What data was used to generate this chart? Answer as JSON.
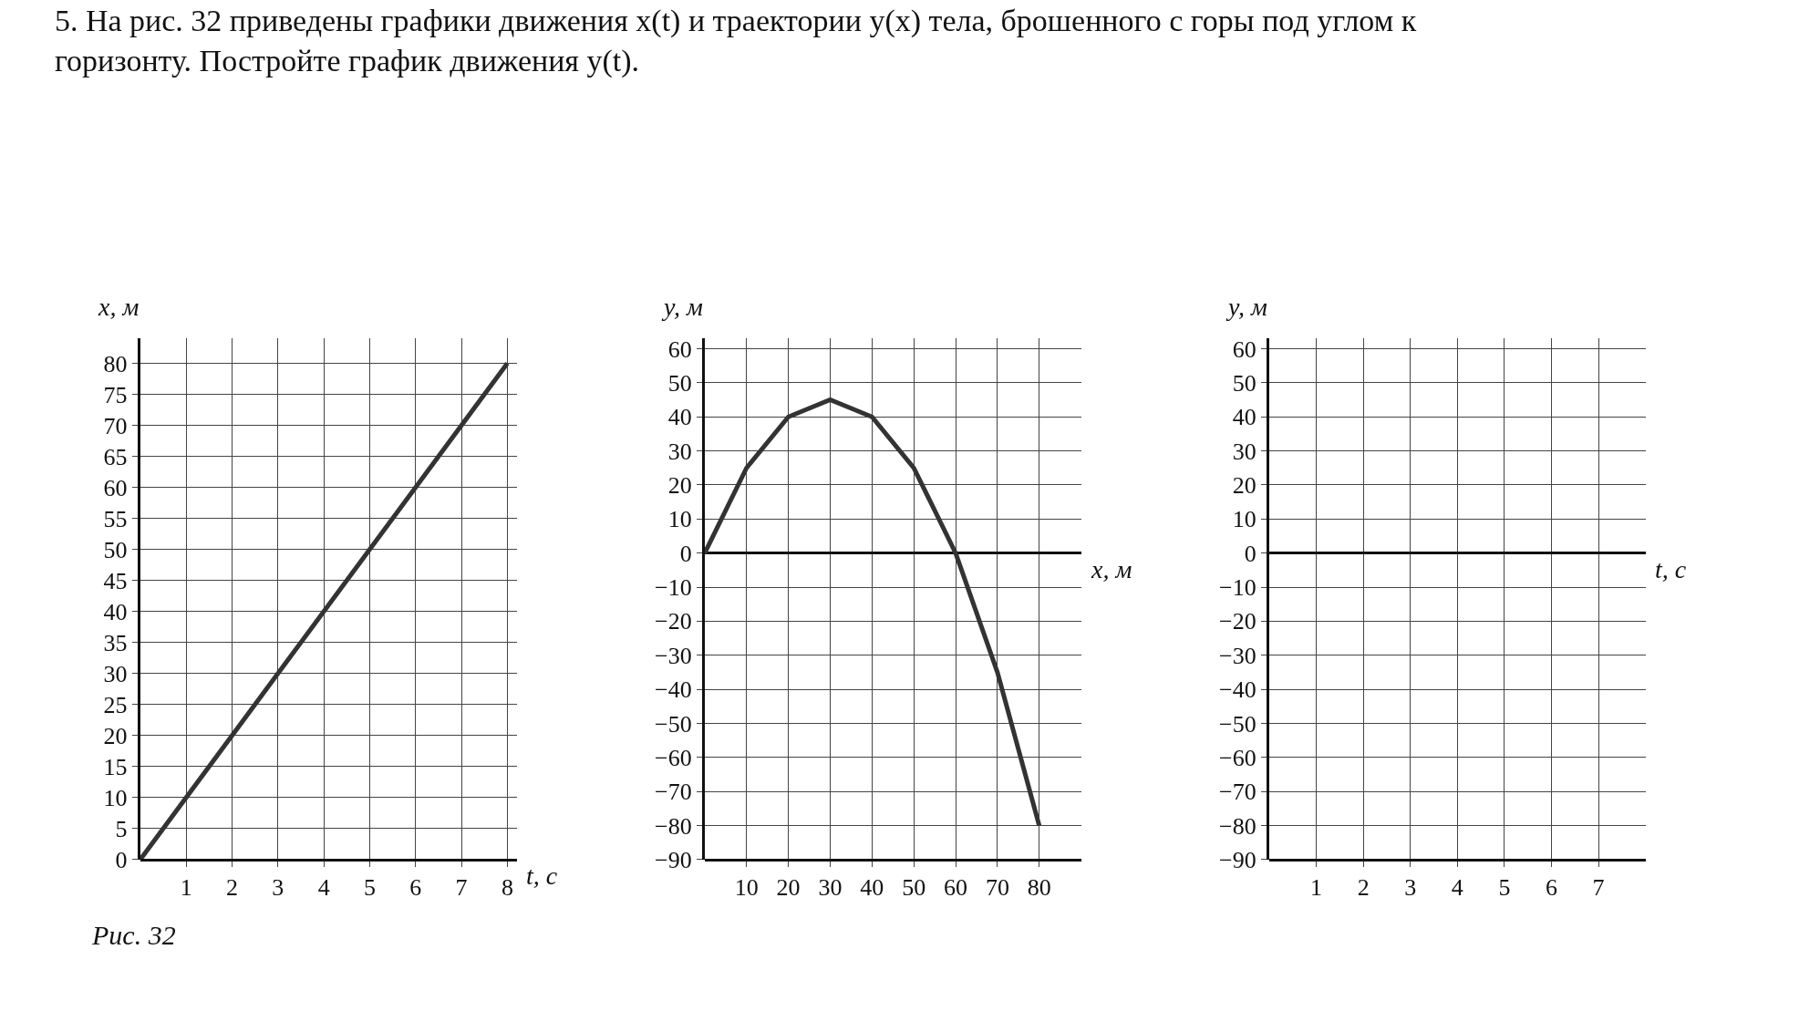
{
  "chart_data": [
    {
      "type": "line",
      "title": "5. На рис. 32 приведены графики движения x(t) и траектории y(x) тела, брошенного с горы под углом к горизонту. Постройте график движения y(t).",
      "annotations": [
        "Рис. 32"
      ],
      "xlabel": "t, с",
      "ylabel": "x, м",
      "x": [
        0,
        8
      ],
      "series": [
        {
          "color": "#333333",
          "values": [
            0,
            80
          ]
        }
      ],
      "xlim": [
        0,
        8.2
      ],
      "ylim": [
        0,
        84
      ],
      "xticks": [
        1,
        2,
        3,
        4,
        5,
        6,
        7,
        8
      ],
      "yticks": [
        0,
        5,
        10,
        15,
        20,
        25,
        30,
        35,
        40,
        45,
        50,
        55,
        60,
        65,
        70,
        75,
        80
      ],
      "grid": true,
      "marker": "none"
    },
    {
      "type": "line",
      "xlabel": "x, м",
      "ylabel": "y, м",
      "x": [
        0,
        10,
        20,
        30,
        40,
        50,
        60,
        70,
        80
      ],
      "series": [
        {
          "color": "#333333",
          "values": [
            0,
            25,
            40,
            45,
            40,
            25,
            0,
            -35,
            -80
          ]
        }
      ],
      "xlim": [
        0,
        90
      ],
      "ylim": [
        -90,
        63
      ],
      "xticks": [
        10,
        20,
        30,
        40,
        50,
        60,
        70,
        80
      ],
      "yticks": [
        -90,
        -80,
        -70,
        -60,
        -50,
        -40,
        -30,
        -20,
        -10,
        0,
        10,
        20,
        30,
        40,
        50,
        60
      ],
      "grid": true,
      "marker": "none"
    },
    {
      "type": "line",
      "xlabel": "t, с",
      "ylabel": "y, м",
      "xlim": [
        0,
        8
      ],
      "ylim": [
        -90,
        63
      ],
      "xticks": [
        1,
        2,
        3,
        4,
        5,
        6,
        7
      ],
      "yticks": [
        -90,
        -80,
        -70,
        -60,
        -50,
        -40,
        -30,
        -20,
        -10,
        0,
        10,
        20,
        30,
        40,
        50,
        60
      ],
      "grid": true
    }
  ]
}
